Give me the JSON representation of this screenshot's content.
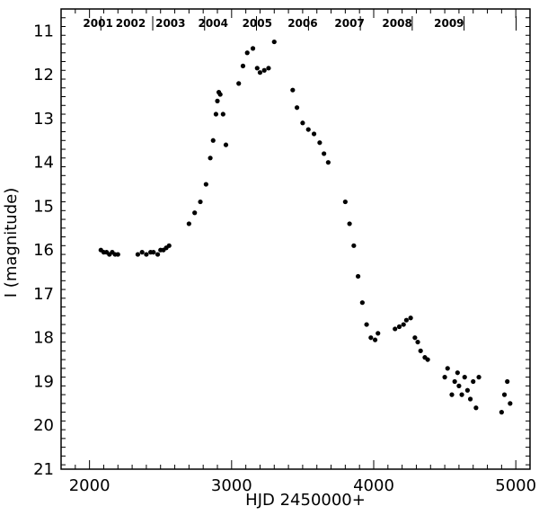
{
  "chart_data": {
    "type": "scatter",
    "title": "",
    "xlabel": "HJD 2450000+",
    "ylabel": "I (magnitude)",
    "xlim": [
      1800,
      5100
    ],
    "ylim": [
      21,
      10.5
    ],
    "y_inverted": true,
    "x_ticks": [
      2000,
      3000,
      4000,
      5000
    ],
    "x_tick_labels": [
      "2000",
      "3000",
      "4000",
      "5000"
    ],
    "y_ticks": [
      11,
      12,
      13,
      14,
      15,
      16,
      17,
      18,
      19,
      20,
      21
    ],
    "y_tick_labels": [
      "11",
      "12",
      "13",
      "14",
      "15",
      "16",
      "17",
      "18",
      "19",
      "20",
      "21"
    ],
    "grid": false,
    "marker_color": "#000000",
    "year_markers": [
      {
        "label": "2001",
        "x": 2080
      },
      {
        "label": "2002",
        "x": 2445
      },
      {
        "label": "2003",
        "x": 2810
      },
      {
        "label": "2004",
        "x": 3175
      },
      {
        "label": "2005",
        "x": 3541
      },
      {
        "label": "2006",
        "x": 3906
      },
      {
        "label": "2007",
        "x": 4271
      },
      {
        "label": "2008",
        "x": 4636
      },
      {
        "label": "2009",
        "x": 5002
      }
    ],
    "year_labels": [
      {
        "label": "2001",
        "x": 2060
      },
      {
        "label": "2002",
        "x": 2290
      },
      {
        "label": "2003",
        "x": 2570
      },
      {
        "label": "2004",
        "x": 2870
      },
      {
        "label": "2005",
        "x": 3180
      },
      {
        "label": "2006",
        "x": 3500
      },
      {
        "label": "2007",
        "x": 3830
      },
      {
        "label": "2008",
        "x": 4165
      },
      {
        "label": "2009",
        "x": 4530
      }
    ],
    "series": [
      {
        "x": [
          2080,
          2100,
          2120,
          2140,
          2160,
          2180,
          2200,
          2340,
          2370,
          2400,
          2430,
          2450,
          2480,
          2500,
          2520,
          2540,
          2560,
          2700,
          2740,
          2780,
          2820,
          2850,
          2870,
          2890,
          2900,
          2910,
          2920,
          2940,
          2960,
          3050,
          3080,
          3110,
          3150,
          3180,
          3200,
          3230,
          3260,
          3300,
          3430,
          3460,
          3500,
          3540,
          3580,
          3620,
          3650,
          3680,
          3800,
          3830,
          3860,
          3890,
          3920,
          3950,
          3980,
          4010,
          4030,
          4150,
          4180,
          4210,
          4230,
          4260,
          4290,
          4310,
          4330,
          4360,
          4380,
          4500,
          4520,
          4550,
          4570,
          4590,
          4600,
          4620,
          4640,
          4660,
          4680,
          4700,
          4720,
          4740,
          4900,
          4920,
          4940,
          4960
        ],
        "y": [
          16.0,
          16.05,
          16.05,
          16.1,
          16.05,
          16.1,
          16.1,
          16.1,
          16.05,
          16.1,
          16.05,
          16.05,
          16.1,
          16.0,
          16.0,
          15.95,
          15.9,
          15.4,
          15.15,
          14.9,
          14.5,
          13.9,
          13.5,
          12.9,
          12.6,
          12.4,
          12.45,
          12.9,
          13.6,
          12.2,
          11.8,
          11.5,
          11.4,
          11.85,
          11.95,
          11.9,
          11.85,
          11.25,
          12.35,
          12.75,
          13.1,
          13.25,
          13.35,
          13.55,
          13.8,
          14.0,
          14.9,
          15.4,
          15.9,
          16.6,
          17.2,
          17.7,
          18.0,
          18.05,
          17.9,
          17.8,
          17.75,
          17.7,
          17.6,
          17.55,
          18.0,
          18.1,
          18.3,
          18.45,
          18.5,
          18.9,
          18.7,
          19.3,
          19.0,
          18.8,
          19.1,
          19.3,
          18.9,
          19.2,
          19.4,
          19.0,
          19.6,
          18.9,
          19.7,
          19.3,
          19.0,
          19.5
        ]
      }
    ]
  }
}
